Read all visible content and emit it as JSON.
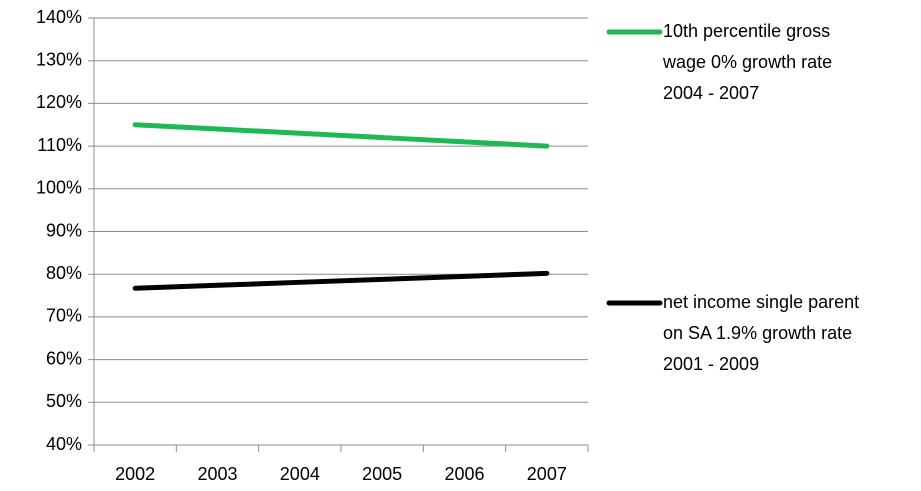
{
  "chart_data": {
    "type": "line",
    "categories": [
      "2002",
      "2003",
      "2004",
      "2005",
      "2006",
      "2007"
    ],
    "series": [
      {
        "name": "10th percentile gross wage 0% growth rate 2004 - 2007",
        "color": "#1db954",
        "values": [
          115,
          114,
          113,
          112,
          111,
          110
        ]
      },
      {
        "name": "net income single parent on SA 1.9% growth rate 2001 - 2009",
        "color": "#000000",
        "values": [
          76.7,
          77.4,
          78.1,
          78.8,
          79.5,
          80.2
        ]
      }
    ],
    "ylim": [
      40,
      140
    ],
    "yticks": [
      {
        "value": 40,
        "label": "40%"
      },
      {
        "value": 50,
        "label": "50%"
      },
      {
        "value": 60,
        "label": "60%"
      },
      {
        "value": 70,
        "label": "70%"
      },
      {
        "value": 80,
        "label": "80%"
      },
      {
        "value": 90,
        "label": "90%"
      },
      {
        "value": 100,
        "label": "100%"
      },
      {
        "value": 110,
        "label": "110%"
      },
      {
        "value": 120,
        "label": "120%"
      },
      {
        "value": 130,
        "label": "130%"
      },
      {
        "value": 140,
        "label": "140%"
      }
    ],
    "grid": true,
    "legend": "right"
  }
}
